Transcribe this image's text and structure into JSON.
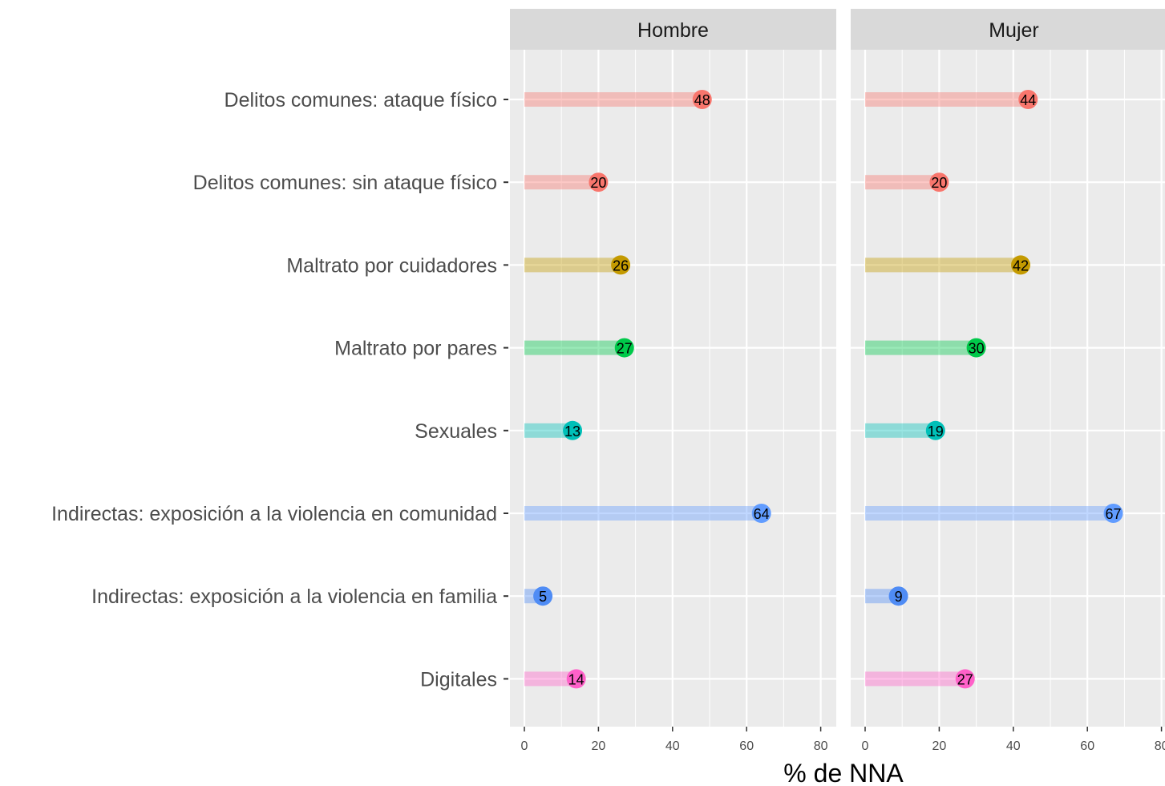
{
  "chart_data": {
    "type": "bar",
    "xlabel": "% de NNA",
    "ylabel": "",
    "xlim": [
      0,
      80
    ],
    "x_ticks": [
      0,
      20,
      40,
      60,
      80
    ],
    "grid": true,
    "legend": "none",
    "categories": [
      "Delitos comunes: ataque físico",
      "Delitos comunes: sin ataque físico",
      "Maltrato por cuidadores",
      "Maltrato por pares",
      "Sexuales",
      "Indirectas: exposición a la violencia en comunidad",
      "Indirectas: exposición a la violencia en familia",
      "Digitales"
    ],
    "colors": [
      "#F8766D",
      "#F8766D",
      "#C49A00",
      "#00C94A",
      "#00C0B8",
      "#619CFF",
      "#4F8CF5",
      "#FF61C9"
    ],
    "panels": [
      {
        "label": "Hombre",
        "values": [
          48,
          20,
          26,
          27,
          13,
          64,
          5,
          14
        ]
      },
      {
        "label": "Mujer",
        "values": [
          44,
          20,
          42,
          30,
          19,
          67,
          9,
          27
        ]
      }
    ]
  }
}
